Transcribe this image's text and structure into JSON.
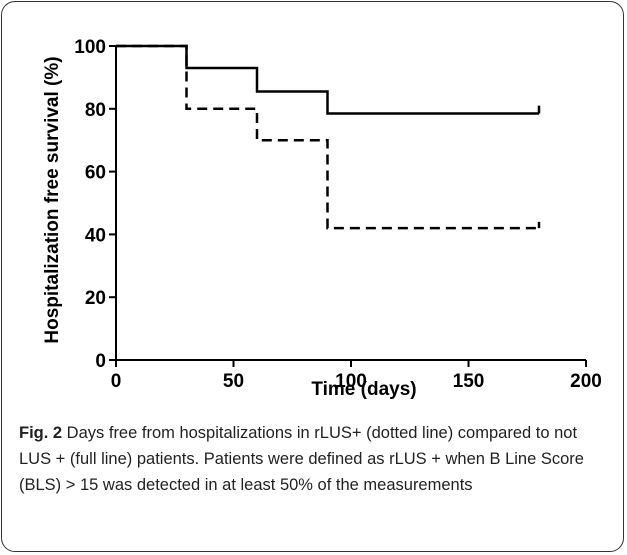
{
  "chart_data": {
    "type": "line",
    "title": "",
    "xlabel": "Time (days)",
    "ylabel": "Hospitalization free survival (%)",
    "xlim": [
      0,
      200
    ],
    "ylim": [
      0,
      100
    ],
    "xticks": [
      "0",
      "50",
      "100",
      "150",
      "200"
    ],
    "yticks": [
      "0",
      "20",
      "40",
      "60",
      "80",
      "100"
    ],
    "grid": false,
    "step": true,
    "series": [
      {
        "name": "",
        "style": "solid",
        "x": [
          0,
          30,
          30,
          60,
          60,
          90,
          90,
          180
        ],
        "y": [
          100,
          100,
          93,
          93,
          85.5,
          85.5,
          78.5,
          78.5
        ],
        "censor_end": [
          180,
          81
        ]
      },
      {
        "name": "",
        "style": "dashed",
        "x": [
          0,
          30,
          30,
          60,
          60,
          90,
          90,
          180
        ],
        "y": [
          100,
          100,
          80,
          80,
          70,
          70,
          42,
          42
        ],
        "censor_end": [
          180,
          44
        ]
      }
    ]
  },
  "caption": {
    "label": "Fig. 2",
    "text": " Days free from hospitalizations in rLUS+ (dotted line) compared to not LUS + (full line) patients. Patients were defined as rLUS + when B Line Score (BLS) > 15 was detected in at least 50% of the measurements"
  },
  "colors": {
    "line": "#000000",
    "frame": "#333333",
    "caption_text": "#222222"
  }
}
